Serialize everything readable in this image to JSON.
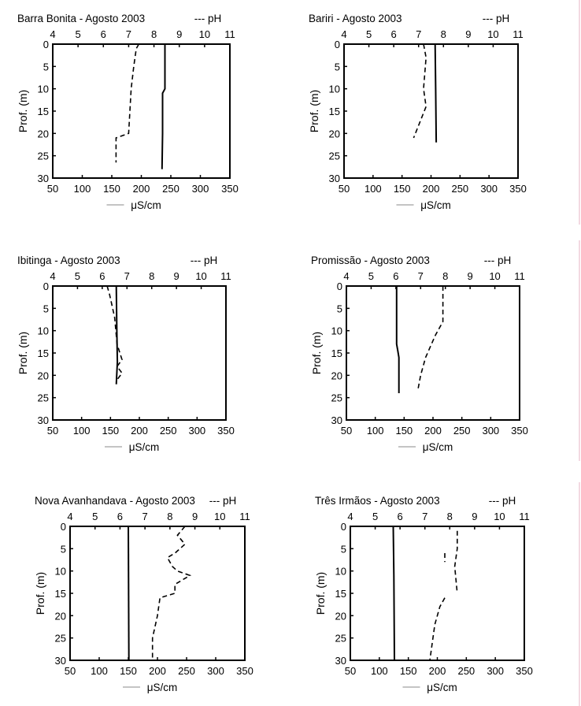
{
  "figure": {
    "ylabel": "Prof. (m)",
    "xlabel_bottom": "μS/cm",
    "legend_conductivity": "—",
    "legend_ph": "--- pH",
    "y_ticks": [
      "0",
      "5",
      "10",
      "15",
      "20",
      "25",
      "30"
    ],
    "cond_ticks": [
      "50",
      "100",
      "150",
      "200",
      "250",
      "300",
      "350"
    ],
    "ph_ticks": [
      "4",
      "5",
      "6",
      "7",
      "8",
      "9",
      "10",
      "11"
    ]
  },
  "chart_data": [
    {
      "type": "line",
      "title": "Barra Bonita - Agosto 2003",
      "ylabel": "Prof. (m)",
      "ylim": [
        0,
        30
      ],
      "xlabel_bottom": "μS/cm",
      "xlim_bottom": [
        50,
        350
      ],
      "xlabel_top": "pH",
      "xlim_top": [
        4,
        11
      ],
      "series": [
        {
          "name": "μS/cm",
          "axis": "bottom",
          "style": "solid",
          "depth": [
            0,
            10,
            11,
            20,
            28
          ],
          "values": [
            240,
            240,
            236,
            236,
            235
          ]
        },
        {
          "name": "pH",
          "axis": "top",
          "style": "dashed",
          "depth": [
            0,
            1,
            5,
            10,
            20,
            21,
            26.5
          ],
          "values": [
            7.4,
            7.3,
            7.2,
            7.1,
            7.0,
            6.5,
            6.5
          ]
        }
      ]
    },
    {
      "type": "line",
      "title": "Bariri - Agosto 2003",
      "ylabel": "Prof. (m)",
      "ylim": [
        0,
        30
      ],
      "xlabel_bottom": "μS/cm",
      "xlim_bottom": [
        50,
        350
      ],
      "xlabel_top": "pH",
      "xlim_top": [
        4,
        11
      ],
      "series": [
        {
          "name": "μS/cm",
          "axis": "bottom",
          "style": "solid",
          "depth": [
            0,
            10,
            22
          ],
          "values": [
            207,
            208,
            209
          ]
        },
        {
          "name": "pH",
          "axis": "top",
          "style": "dashed",
          "depth": [
            0,
            3,
            10,
            14,
            21
          ],
          "values": [
            7.2,
            7.3,
            7.2,
            7.3,
            6.8
          ]
        }
      ]
    },
    {
      "type": "line",
      "title": "Ibitinga - Agosto 2003",
      "ylabel": "Prof. (m)",
      "ylim": [
        0,
        30
      ],
      "xlabel_bottom": "μS/cm",
      "xlim_bottom": [
        50,
        350
      ],
      "xlabel_top": "pH",
      "xlim_top": [
        4,
        11
      ],
      "series": [
        {
          "name": "μS/cm",
          "axis": "bottom",
          "style": "solid",
          "depth": [
            0,
            10,
            17,
            22
          ],
          "values": [
            160,
            161,
            162,
            160
          ]
        },
        {
          "name": "pH",
          "axis": "top",
          "style": "dashed",
          "depth": [
            0,
            2,
            7,
            13,
            16.5,
            18,
            19.5,
            21
          ],
          "values": [
            6.2,
            6.3,
            6.5,
            6.6,
            6.8,
            6.6,
            6.8,
            6.6
          ]
        }
      ]
    },
    {
      "type": "line",
      "title": "Promissão - Agosto 2003",
      "ylabel": "Prof. (m)",
      "ylim": [
        0,
        30
      ],
      "xlabel_bottom": "μS/cm",
      "xlim_bottom": [
        50,
        350
      ],
      "xlabel_top": "pH",
      "xlim_top": [
        4,
        11
      ],
      "series": [
        {
          "name": "μS/cm",
          "axis": "bottom",
          "style": "solid",
          "depth": [
            0,
            13,
            14.5,
            16,
            24
          ],
          "values": [
            137,
            137,
            139,
            141,
            141
          ]
        },
        {
          "name": "pH",
          "axis": "top",
          "style": "dashed",
          "depth": [
            0,
            8,
            11,
            16,
            20,
            23
          ],
          "values": [
            7.9,
            7.9,
            7.6,
            7.2,
            7.0,
            6.9
          ]
        }
      ]
    },
    {
      "type": "line",
      "title": "Nova Avanhandava - Agosto 2003",
      "ylabel": "Prof. (m)",
      "ylim": [
        0,
        30
      ],
      "xlabel_bottom": "μS/cm",
      "xlim_bottom": [
        50,
        350
      ],
      "xlabel_top": "pH",
      "xlim_top": [
        4,
        11
      ],
      "series": [
        {
          "name": "μS/cm",
          "axis": "bottom",
          "style": "solid",
          "depth": [
            0,
            30
          ],
          "values": [
            150,
            151
          ]
        },
        {
          "name": "pH",
          "axis": "top",
          "style": "dashed",
          "depth": [
            0,
            2,
            4,
            6,
            7,
            9,
            10,
            11,
            13,
            15,
            16,
            20,
            25,
            30
          ],
          "values": [
            8.6,
            8.3,
            8.6,
            8.2,
            7.9,
            8.1,
            8.3,
            8.8,
            8.2,
            8.2,
            7.6,
            7.5,
            7.3,
            7.3
          ]
        }
      ]
    },
    {
      "type": "line",
      "title": "Três Irmãos - Agosto 2003",
      "ylabel": "Prof. (m)",
      "ylim": [
        0,
        30
      ],
      "xlabel_bottom": "μS/cm",
      "xlim_bottom": [
        50,
        350
      ],
      "xlabel_top": "pH",
      "xlim_top": [
        4,
        11
      ],
      "series": [
        {
          "name": "μS/cm",
          "axis": "bottom",
          "style": "solid",
          "depth": [
            0,
            11,
            30
          ],
          "values": [
            124,
            125,
            126
          ]
        },
        {
          "name": "pH",
          "axis": "top",
          "style": "dashed",
          "depth": [
            1,
            4,
            5,
            9,
            15
          ],
          "values": [
            8.3,
            8.3,
            8.3,
            8.2,
            8.3
          ]
        },
        {
          "name": "pH",
          "axis": "top",
          "style": "dashed",
          "segment": "lower",
          "depth": [
            6,
            8
          ],
          "values": [
            7.8,
            7.8
          ]
        },
        {
          "name": "pH",
          "axis": "top",
          "style": "dashed",
          "segment": "profile",
          "depth": [
            16,
            18,
            22,
            30
          ],
          "values": [
            7.8,
            7.6,
            7.4,
            7.2
          ]
        }
      ]
    }
  ]
}
